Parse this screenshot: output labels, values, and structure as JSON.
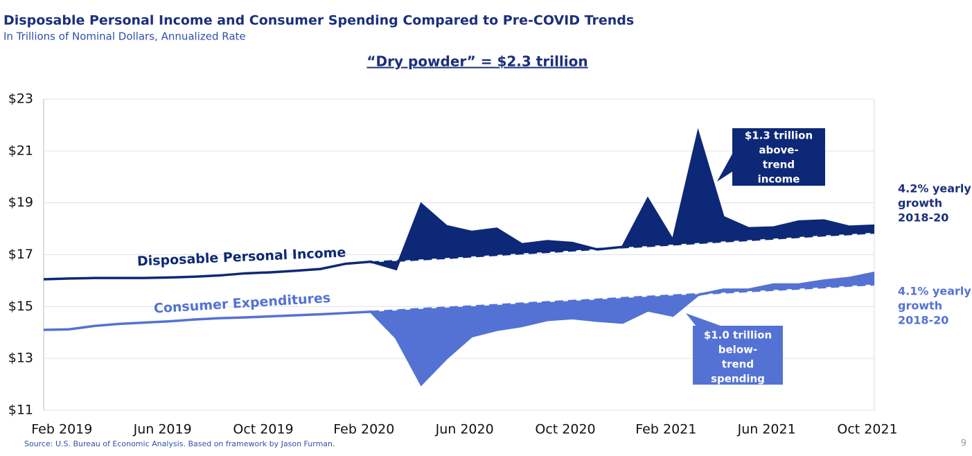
{
  "chart_data": {
    "type": "line",
    "title": "Disposable Personal Income and Consumer Spending Compared to Pre-COVID Trends",
    "subtitle": "In Trillions of Nominal Dollars, Annualized Rate",
    "headline": "“Dry powder” = $2.3 trillion",
    "source": "Source: U.S. Bureau of Economic Analysis. Based on framework by Jason Furman.",
    "page_number": "9",
    "categories": [
      null,
      "Feb 2019",
      null,
      null,
      null,
      "Jun 2019",
      null,
      null,
      null,
      "Oct 2019",
      null,
      null,
      null,
      "Feb 2020",
      null,
      null,
      null,
      "Jun 2020",
      null,
      null,
      null,
      "Oct 2020",
      null,
      null,
      null,
      "Feb 2021",
      null,
      null,
      null,
      "Jun 2021",
      null,
      null,
      null,
      "Oct 2021"
    ],
    "ylim": [
      11,
      23
    ],
    "yticks": [
      {
        "value": 11,
        "label": "$11"
      },
      {
        "value": 13,
        "label": "$13"
      },
      {
        "value": 15,
        "label": "$15"
      },
      {
        "value": 17,
        "label": "$17"
      },
      {
        "value": 19,
        "label": "$19"
      },
      {
        "value": 21,
        "label": "$21"
      },
      {
        "value": 23,
        "label": "$23"
      }
    ],
    "grid": true,
    "series": [
      {
        "name": "Disposable Personal Income",
        "color": "#0d2877",
        "values": [
          16.05,
          16.08,
          16.1,
          16.1,
          16.1,
          16.12,
          16.15,
          16.2,
          16.28,
          16.32,
          16.38,
          16.45,
          16.65,
          16.73,
          16.45,
          18.95,
          18.1,
          17.88,
          18.0,
          17.4,
          17.52,
          17.45,
          17.2,
          17.3,
          19.15,
          17.55,
          21.7,
          18.45,
          18.02,
          18.05,
          18.28,
          18.32,
          18.08,
          18.12
        ]
      },
      {
        "color": "#0d2877",
        "dashed": true,
        "values": [
          null,
          null,
          null,
          null,
          null,
          null,
          null,
          null,
          null,
          null,
          null,
          null,
          null,
          16.7,
          16.76,
          16.82,
          16.87,
          16.93,
          16.99,
          17.05,
          17.1,
          17.16,
          17.22,
          17.28,
          17.33,
          17.39,
          17.45,
          17.51,
          17.56,
          17.62,
          17.68,
          17.74,
          17.79,
          17.85
        ]
      },
      {
        "name": "Consumer Expenditures",
        "color": "#5472d3",
        "values": [
          14.1,
          14.12,
          14.25,
          14.33,
          14.38,
          14.43,
          14.5,
          14.55,
          14.58,
          14.62,
          14.66,
          14.7,
          14.75,
          14.8,
          13.8,
          12.0,
          13.0,
          13.85,
          14.1,
          14.25,
          14.48,
          14.55,
          14.45,
          14.38,
          14.85,
          14.65,
          15.45,
          15.65,
          15.65,
          15.85,
          15.85,
          16.0,
          16.1,
          16.3
        ]
      },
      {
        "color": "#5472d3",
        "dashed": true,
        "values": [
          null,
          null,
          null,
          null,
          null,
          null,
          null,
          null,
          null,
          null,
          null,
          null,
          null,
          14.8,
          14.85,
          14.91,
          14.96,
          15.01,
          15.06,
          15.12,
          15.17,
          15.22,
          15.27,
          15.33,
          15.38,
          15.43,
          15.48,
          15.54,
          15.59,
          15.64,
          15.69,
          15.74,
          15.8,
          15.85
        ]
      }
    ],
    "annotations": [
      {
        "lines": [
          "$1.3 trillion",
          "above-",
          "trend",
          "income"
        ]
      },
      {
        "lines": [
          "$1.0 trillion",
          "below-",
          "trend",
          "spending"
        ]
      },
      {
        "lines": [
          "4.2% yearly",
          "growth",
          "2018-20"
        ]
      },
      {
        "lines": [
          "4.1% yearly",
          "growth",
          "2018-20"
        ]
      }
    ]
  }
}
